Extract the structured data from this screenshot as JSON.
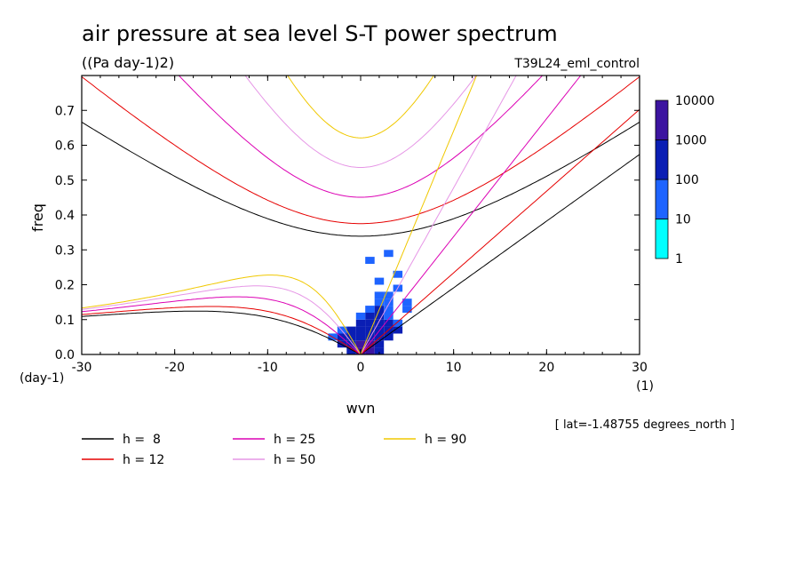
{
  "chart_data": {
    "type": "heatmap",
    "title": "air pressure at sea level S-T power spectrum",
    "units": "((Pa day-1)2)",
    "experiment": "T39L24_eml_control",
    "xlabel": "wvn",
    "ylabel": "freq",
    "x_unit": "(1)",
    "y_unit": "(day-1)",
    "xlim": [
      -30,
      30
    ],
    "ylim": [
      0,
      0.8
    ],
    "x_ticks": [
      "-30",
      "-20",
      "-10",
      "0",
      "10",
      "20",
      "30"
    ],
    "y_ticks": [
      "0.0",
      "0.1",
      "0.2",
      "0.3",
      "0.4",
      "0.5",
      "0.6",
      "0.7"
    ],
    "annotation": "[ lat=-1.48755 degrees_north ]",
    "colorbar": {
      "labels": [
        "1",
        "10",
        "100",
        "1000",
        "10000"
      ],
      "colors": [
        "#00ffff",
        "#1e64ff",
        "#0a1eb4",
        "#3c14a0"
      ]
    },
    "equivalent_depths": [
      {
        "label": "h =  8",
        "h": 8,
        "color": "#000000"
      },
      {
        "label": "h = 12",
        "h": 12,
        "color": "#e60000"
      },
      {
        "label": "h = 25",
        "h": 25,
        "color": "#dc00b4"
      },
      {
        "label": "h = 50",
        "h": 50,
        "color": "#e696e6"
      },
      {
        "label": "h = 90",
        "h": 90,
        "color": "#f0c800"
      }
    ],
    "power_cells": [
      {
        "x": 0,
        "f": 0.0,
        "level": 3
      },
      {
        "x": 1,
        "f": 0.0,
        "level": 3
      },
      {
        "x": -1,
        "f": 0.0,
        "level": 2
      },
      {
        "x": 2,
        "f": 0.0,
        "level": 2
      },
      {
        "x": 0,
        "f": 0.02,
        "level": 3
      },
      {
        "x": 1,
        "f": 0.02,
        "level": 3
      },
      {
        "x": 2,
        "f": 0.02,
        "level": 2
      },
      {
        "x": -1,
        "f": 0.02,
        "level": 2
      },
      {
        "x": -2,
        "f": 0.02,
        "level": 2
      },
      {
        "x": 0,
        "f": 0.04,
        "level": 2
      },
      {
        "x": 1,
        "f": 0.04,
        "level": 2
      },
      {
        "x": 2,
        "f": 0.04,
        "level": 2
      },
      {
        "x": 3,
        "f": 0.04,
        "level": 2
      },
      {
        "x": -1,
        "f": 0.04,
        "level": 2
      },
      {
        "x": -2,
        "f": 0.04,
        "level": 2
      },
      {
        "x": -3,
        "f": 0.04,
        "level": 1
      },
      {
        "x": 0,
        "f": 0.06,
        "level": 2
      },
      {
        "x": 1,
        "f": 0.06,
        "level": 2
      },
      {
        "x": 2,
        "f": 0.06,
        "level": 2
      },
      {
        "x": 3,
        "f": 0.06,
        "level": 2
      },
      {
        "x": 4,
        "f": 0.06,
        "level": 2
      },
      {
        "x": -1,
        "f": 0.06,
        "level": 2
      },
      {
        "x": -2,
        "f": 0.06,
        "level": 1
      },
      {
        "x": 0,
        "f": 0.08,
        "level": 2
      },
      {
        "x": 1,
        "f": 0.08,
        "level": 2
      },
      {
        "x": 2,
        "f": 0.08,
        "level": 2
      },
      {
        "x": 3,
        "f": 0.08,
        "level": 2
      },
      {
        "x": 4,
        "f": 0.08,
        "level": 1
      },
      {
        "x": 1,
        "f": 0.1,
        "level": 2
      },
      {
        "x": 2,
        "f": 0.1,
        "level": 2
      },
      {
        "x": 3,
        "f": 0.1,
        "level": 1
      },
      {
        "x": 0,
        "f": 0.1,
        "level": 1
      },
      {
        "x": 1,
        "f": 0.12,
        "level": 1
      },
      {
        "x": 2,
        "f": 0.12,
        "level": 2
      },
      {
        "x": 3,
        "f": 0.12,
        "level": 1
      },
      {
        "x": 5,
        "f": 0.12,
        "level": 1
      },
      {
        "x": 2,
        "f": 0.14,
        "level": 1
      },
      {
        "x": 3,
        "f": 0.14,
        "level": 1
      },
      {
        "x": 5,
        "f": 0.14,
        "level": 1
      },
      {
        "x": 2,
        "f": 0.16,
        "level": 1
      },
      {
        "x": 3,
        "f": 0.16,
        "level": 1
      },
      {
        "x": 4,
        "f": 0.18,
        "level": 1
      },
      {
        "x": 2,
        "f": 0.2,
        "level": 1
      },
      {
        "x": 4,
        "f": 0.22,
        "level": 1
      },
      {
        "x": 1,
        "f": 0.26,
        "level": 1
      },
      {
        "x": 3,
        "f": 0.28,
        "level": 1
      }
    ]
  }
}
